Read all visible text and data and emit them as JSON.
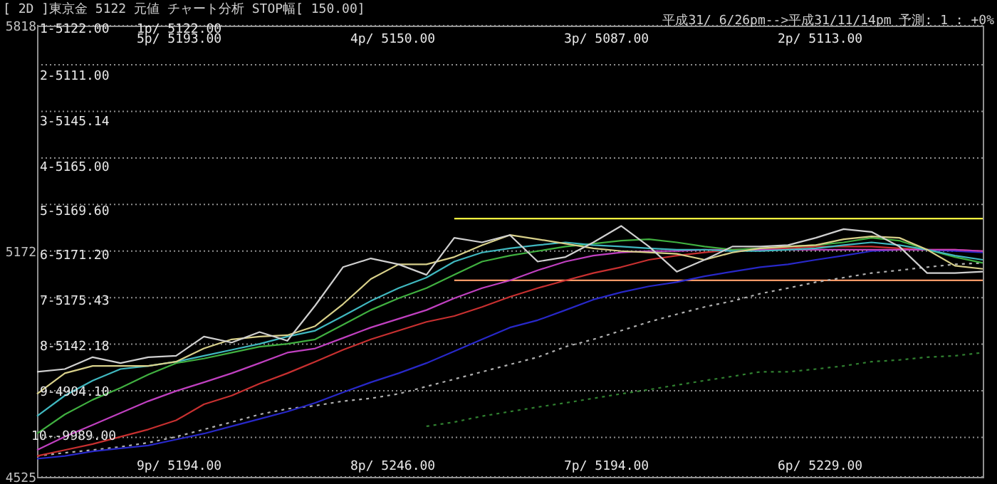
{
  "chart_data": {
    "type": "line",
    "title": "[ 2D ]東京金  5122  元値  チャート分析  STOP幅[ 150.00]",
    "subtitle": "平成31/ 6/26pm-->平成31/11/14pm 予測: 1 : +0%",
    "annotations": [
      "1-5122.00",
      "2-5111.00",
      "3-5145.14",
      "4-5165.00",
      "5-5169.60",
      "6-5171.20",
      "7-5175.43",
      "8-5142.18",
      "9-4904.10",
      "10--9989.00",
      "1p/ 5122.00",
      "5p/ 5193.00",
      "4p/ 5150.00",
      "3p/ 5087.00",
      "2p/ 5113.00",
      "9p/ 5194.00",
      "8p/ 5246.00",
      "7p/ 5194.00",
      "6p/ 5229.00"
    ],
    "categories": [
      null,
      null,
      null,
      null,
      null,
      null,
      null,
      null,
      null,
      null,
      null,
      null,
      null,
      null,
      null,
      null,
      null,
      null,
      null,
      null,
      null,
      null,
      null,
      null,
      null,
      null,
      null,
      null,
      null,
      null,
      null,
      null,
      null,
      null,
      null
    ],
    "ylim": [
      4525,
      5818
    ],
    "yticks": [
      5818,
      {
        "value": 5705.6,
        "label": null
      },
      {
        "value": 5572.2,
        "label": null
      },
      {
        "value": 5438.8,
        "label": null
      },
      {
        "value": 5305.4,
        "label": null
      },
      5172,
      {
        "value": 5038.6,
        "label": null
      },
      {
        "value": 4905.2,
        "label": null
      },
      {
        "value": 4771.8,
        "label": null
      },
      {
        "value": 4638.4,
        "label": null
      },
      4525
    ],
    "grid": "y",
    "tick_labels": "y",
    "series": [
      {
        "color": "#ffff40",
        "line_style": "solid",
        "values": [
          null,
          null,
          null,
          null,
          null,
          null,
          null,
          null,
          null,
          null,
          null,
          null,
          null,
          null,
          null,
          5265,
          5265,
          5265,
          5265,
          5265,
          5265,
          5265,
          5265,
          5265,
          5265,
          5265,
          5265,
          5265,
          5265,
          5265,
          5265,
          5265,
          5265,
          5265,
          5265
        ]
      },
      {
        "color": "#ff9966",
        "line_style": "solid",
        "values": [
          null,
          null,
          null,
          null,
          null,
          null,
          null,
          null,
          null,
          null,
          null,
          null,
          null,
          null,
          null,
          5088,
          5088,
          5088,
          5088,
          5088,
          5088,
          5088,
          5088,
          5088,
          5088,
          5088,
          5088,
          5088,
          5088,
          5088,
          5088,
          5088,
          5088,
          5088,
          5088
        ]
      },
      {
        "color": "#b0b0b0",
        "line_style": "dotted",
        "values": [
          4585,
          4594,
          4602,
          4611,
          4623,
          4640,
          4661,
          4682,
          4704,
          4720,
          4729,
          4742,
          4750,
          4763,
          4784,
          4805,
          4826,
          4847,
          4868,
          4898,
          4919,
          4944,
          4969,
          4991,
          5012,
          5029,
          5050,
          5066,
          5083,
          5096,
          5109,
          5117,
          5126,
          5134,
          5138
        ]
      },
      {
        "color": "#308030",
        "line_style": "dotted",
        "values": [
          null,
          null,
          null,
          null,
          null,
          null,
          null,
          null,
          null,
          null,
          null,
          null,
          null,
          null,
          4670,
          4682,
          4699,
          4712,
          4725,
          4737,
          4750,
          4763,
          4775,
          4788,
          4801,
          4813,
          4826,
          4826,
          4834,
          4843,
          4855,
          4860,
          4868,
          4872,
          4881
        ]
      },
      {
        "color": "#2828c8",
        "line_style": "solid",
        "values": [
          4577,
          4585,
          4598,
          4607,
          4615,
          4632,
          4649,
          4670,
          4691,
          4712,
          4737,
          4767,
          4796,
          4822,
          4851,
          4885,
          4919,
          4953,
          4974,
          5003,
          5033,
          5054,
          5071,
          5083,
          5100,
          5113,
          5126,
          5134,
          5147,
          5159,
          5172,
          5176,
          5176,
          5172,
          5168
        ]
      },
      {
        "color": "#c83030",
        "line_style": "solid",
        "values": [
          4585,
          4602,
          4619,
          4640,
          4661,
          4687,
          4733,
          4758,
          4792,
          4822,
          4855,
          4889,
          4919,
          4944,
          4969,
          4986,
          5012,
          5041,
          5066,
          5088,
          5109,
          5126,
          5147,
          5159,
          5168,
          5176,
          5180,
          5180,
          5185,
          5185,
          5185,
          5180,
          5176,
          5176,
          5172
        ]
      },
      {
        "color": "#c040c0",
        "line_style": "solid",
        "values": [
          4602,
          4640,
          4674,
          4708,
          4742,
          4771,
          4796,
          4822,
          4851,
          4881,
          4893,
          4923,
          4953,
          4978,
          5003,
          5037,
          5066,
          5088,
          5117,
          5142,
          5159,
          5168,
          5172,
          5172,
          5176,
          5176,
          5176,
          5176,
          5176,
          5176,
          5176,
          5176,
          5176,
          5176,
          5172
        ]
      },
      {
        "color": "#40b040",
        "line_style": "solid",
        "values": [
          4649,
          4704,
          4746,
          4780,
          4818,
          4851,
          4864,
          4881,
          4898,
          4906,
          4919,
          4961,
          5003,
          5037,
          5066,
          5104,
          5142,
          5159,
          5172,
          5185,
          5193,
          5202,
          5206,
          5197,
          5185,
          5176,
          5180,
          5185,
          5189,
          5197,
          5210,
          5202,
          5176,
          5155,
          5138
        ]
      },
      {
        "color": "#40b8c0",
        "line_style": "solid",
        "values": [
          4699,
          4758,
          4801,
          4834,
          4843,
          4855,
          4872,
          4889,
          4906,
          4927,
          4944,
          4986,
          5029,
          5066,
          5096,
          5142,
          5168,
          5180,
          5189,
          5197,
          5189,
          5185,
          5180,
          5176,
          5176,
          5172,
          5172,
          5176,
          5180,
          5189,
          5197,
          5189,
          5176,
          5159,
          5147
        ]
      },
      {
        "color": "#d8d08a",
        "line_style": "solid",
        "values": [
          4763,
          4822,
          4843,
          4843,
          4843,
          4855,
          4893,
          4919,
          4927,
          4931,
          4957,
          5020,
          5092,
          5134,
          5134,
          5155,
          5189,
          5218,
          5206,
          5193,
          5180,
          5172,
          5168,
          5164,
          5147,
          5168,
          5180,
          5185,
          5189,
          5206,
          5214,
          5210,
          5176,
          5130,
          5121
        ]
      },
      {
        "color": "#d0d0d0",
        "line_style": "solid",
        "values": [
          4826,
          4834,
          4868,
          4851,
          4868,
          4872,
          4927,
          4910,
          4940,
          4915,
          5016,
          5126,
          5151,
          5134,
          5104,
          5210,
          5197,
          5218,
          5142,
          5155,
          5197,
          5244,
          5185,
          5113,
          5147,
          5185,
          5185,
          5189,
          5210,
          5235,
          5227,
          5185,
          5109,
          5109,
          5113
        ]
      }
    ]
  }
}
